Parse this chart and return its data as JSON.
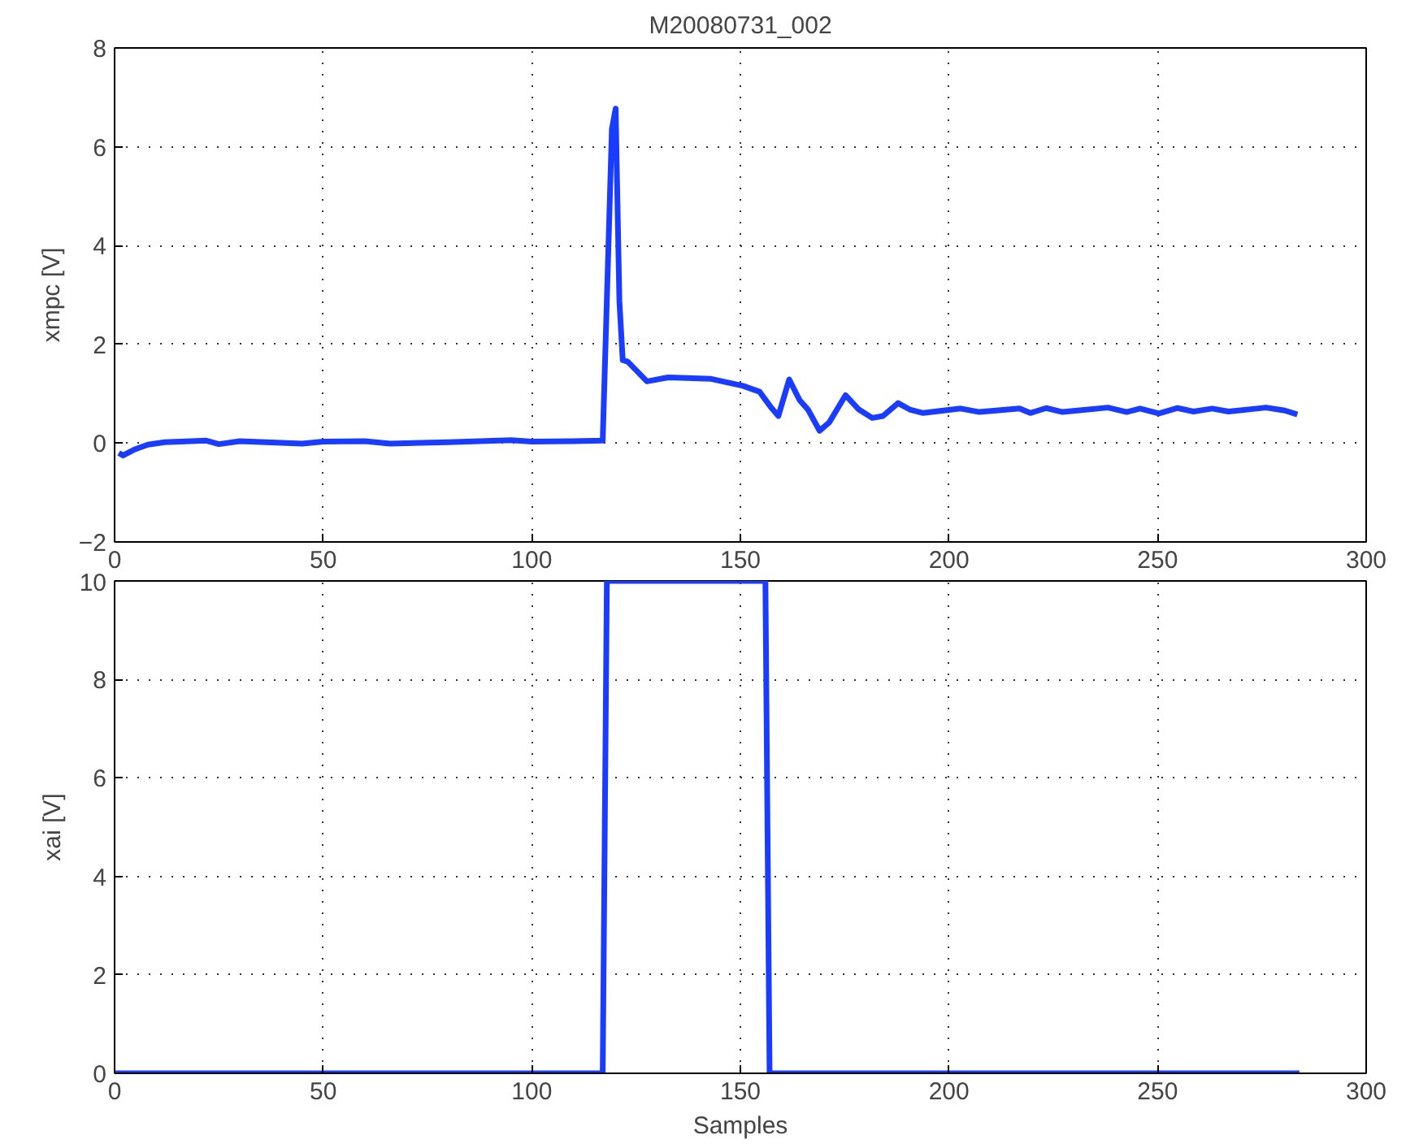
{
  "chart_data": [
    {
      "type": "line",
      "title": "M20080731_002",
      "ylabel": "xmpc [V]",
      "xlim": [
        0,
        300
      ],
      "ylim": [
        -2,
        8
      ],
      "xticks": [
        0,
        50,
        100,
        150,
        200,
        250,
        300
      ],
      "yticks": [
        -2,
        0,
        2,
        4,
        6,
        8
      ],
      "grid": true,
      "line_style": "solid",
      "series": [
        {
          "color": "#1a3cff",
          "x": [
            1,
            2,
            5,
            8,
            12,
            22,
            25,
            30,
            45,
            50,
            60,
            66,
            80,
            95,
            100,
            110,
            117,
            119.2,
            120.1,
            121,
            121.8,
            123,
            127.6,
            132.7,
            143,
            150.6,
            154.6,
            157.2,
            159.1,
            161.7,
            164.2,
            166.2,
            169,
            171.3,
            175.2,
            178.4,
            181.6,
            184.2,
            187.8,
            190.6,
            193.8,
            202.8,
            207.3,
            216.9,
            219.5,
            223.3,
            227.2,
            238.1,
            242.6,
            245.8,
            250.3,
            254.8,
            258.6,
            263.1,
            267,
            276,
            280.5,
            283.5
          ],
          "values": [
            -0.2,
            -0.25,
            -0.12,
            -0.03,
            0.02,
            0.05,
            -0.02,
            0.04,
            -0.01,
            0.03,
            0.04,
            -0.01,
            0.02,
            0.06,
            0.03,
            0.04,
            0.05,
            6.36,
            6.77,
            2.87,
            1.68,
            1.65,
            1.25,
            1.33,
            1.3,
            1.16,
            1.04,
            0.74,
            0.55,
            1.29,
            0.87,
            0.68,
            0.25,
            0.42,
            0.97,
            0.68,
            0.51,
            0.55,
            0.81,
            0.68,
            0.61,
            0.7,
            0.63,
            0.7,
            0.61,
            0.71,
            0.63,
            0.72,
            0.63,
            0.7,
            0.6,
            0.71,
            0.64,
            0.7,
            0.64,
            0.72,
            0.66,
            0.58
          ]
        }
      ]
    },
    {
      "type": "line",
      "xlabel": "Samples",
      "ylabel": "xai [V]",
      "xlim": [
        0,
        300
      ],
      "ylim": [
        0,
        10
      ],
      "xticks": [
        0,
        50,
        100,
        150,
        200,
        250,
        300
      ],
      "yticks": [
        0,
        2,
        4,
        6,
        8,
        10
      ],
      "grid": true,
      "line_style": "solid",
      "series": [
        {
          "color": "#1a3cff",
          "x": [
            0,
            117,
            118,
            156,
            157,
            284
          ],
          "values": [
            0,
            0,
            10,
            10,
            0,
            0
          ]
        }
      ]
    }
  ]
}
